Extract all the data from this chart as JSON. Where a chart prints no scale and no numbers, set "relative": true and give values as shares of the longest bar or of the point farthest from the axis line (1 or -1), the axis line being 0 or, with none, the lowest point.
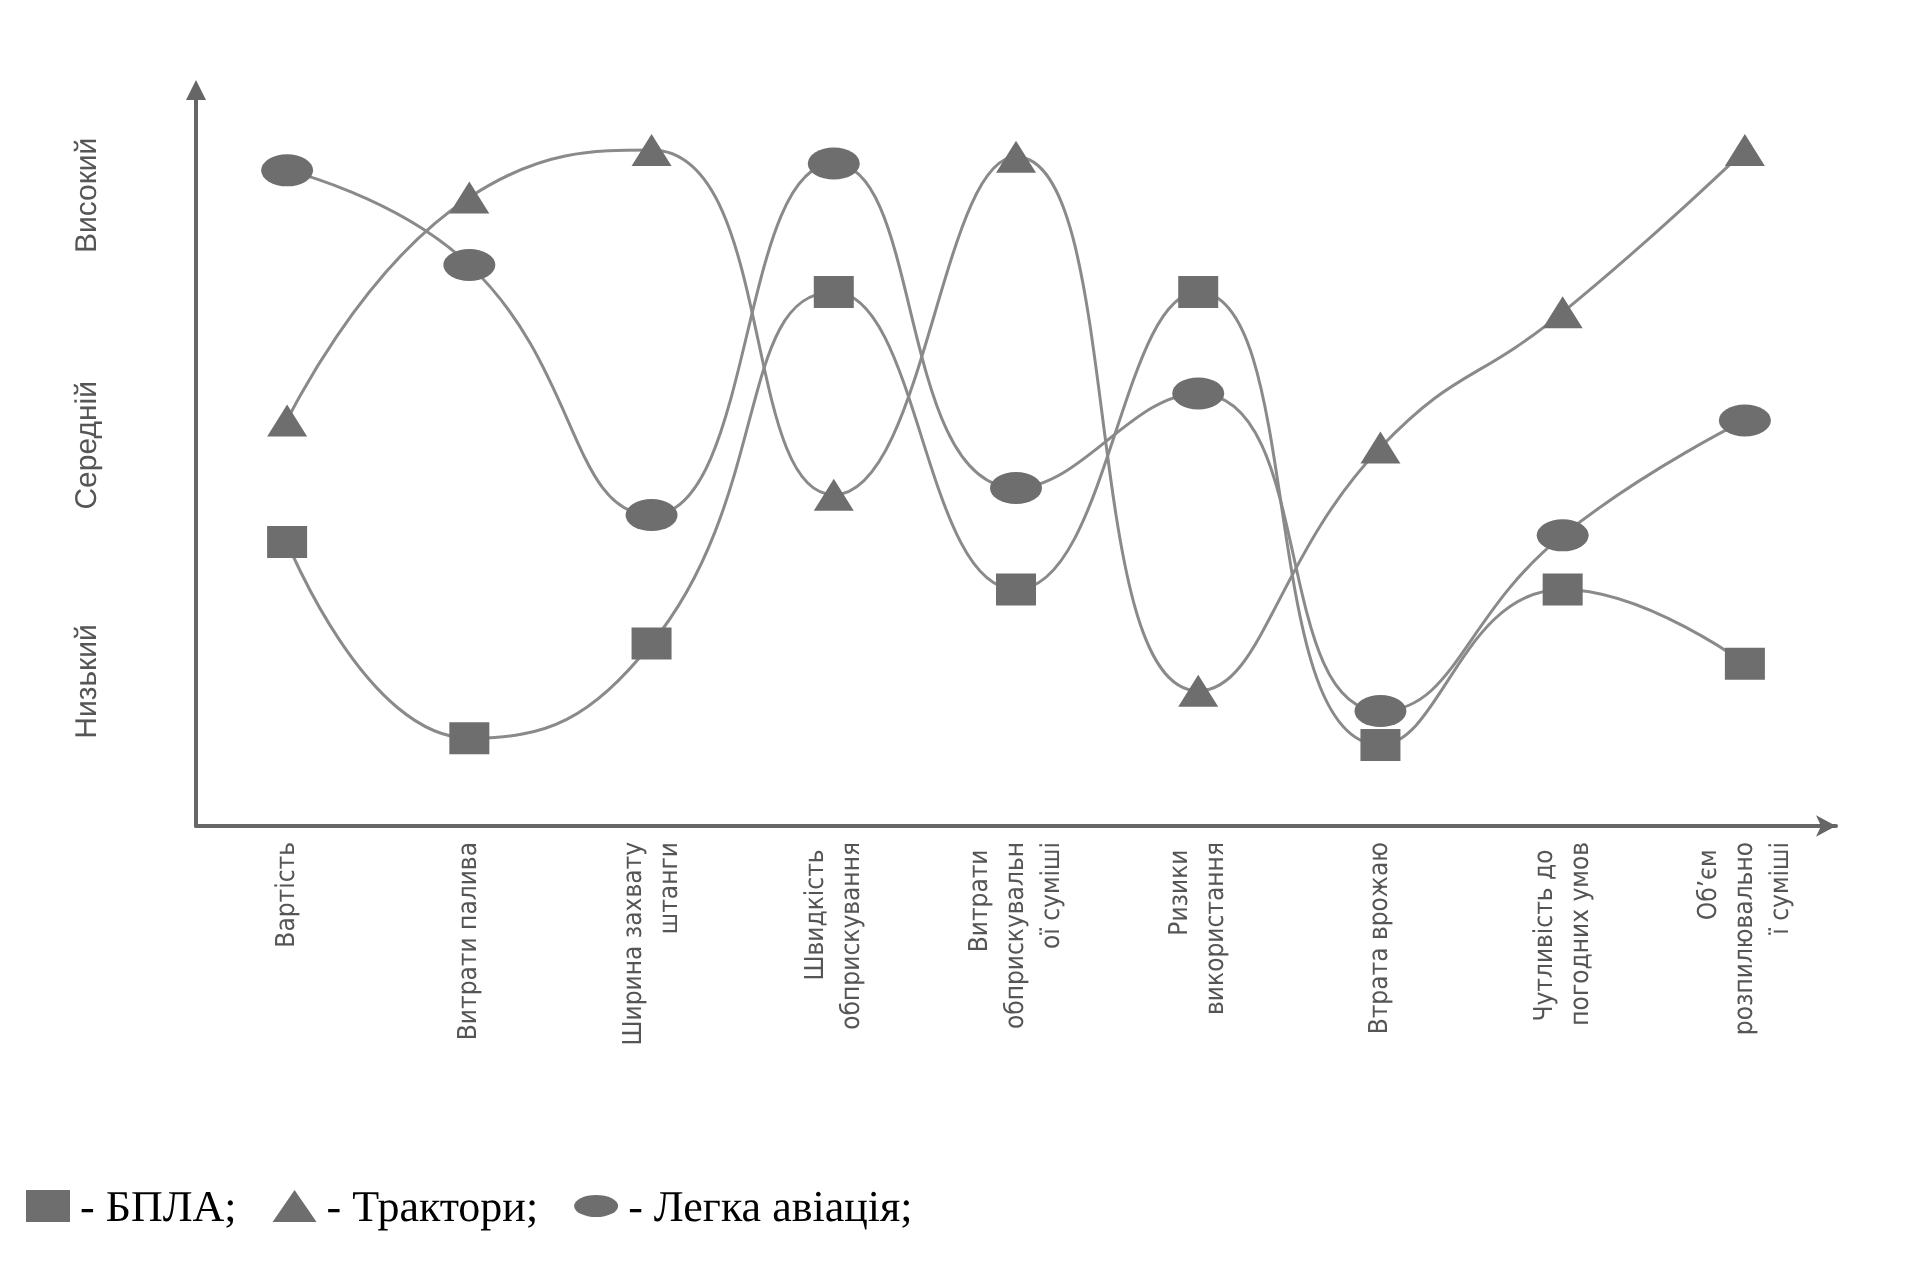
{
  "chart_data": {
    "type": "line",
    "categories": [
      "Вартість",
      "Витрати палива",
      "Ширина захвату штанги",
      "Швидкість обприскування",
      "Витрати обприскувальної суміші",
      "Ризики використання",
      "Втрата врожаю",
      "Чутливість до погодних умов",
      "Об’єм розпилювальної суміші"
    ],
    "series": [
      {
        "name": "- БПЛА;",
        "color": "#6e6e6e",
        "marker": "square",
        "values": [
          0.42,
          0.13,
          0.27,
          0.79,
          0.35,
          0.79,
          0.12,
          0.35,
          0.24
        ]
      },
      {
        "name": "- Трактори;",
        "color": "#6e6e6e",
        "marker": "triangle",
        "values": [
          0.6,
          0.93,
          1.0,
          0.49,
          0.99,
          0.2,
          0.56,
          0.76,
          1.0
        ]
      },
      {
        "name": "- Легка авіація;",
        "color": "#6e6e6e",
        "marker": "circle",
        "values": [
          0.97,
          0.83,
          0.46,
          0.98,
          0.5,
          0.64,
          0.17,
          0.43,
          0.6
        ]
      }
    ],
    "relative": true,
    "annotations": [
      "Низький",
      "Середній",
      "Високий"
    ],
    "legend": "bottom left"
  }
}
